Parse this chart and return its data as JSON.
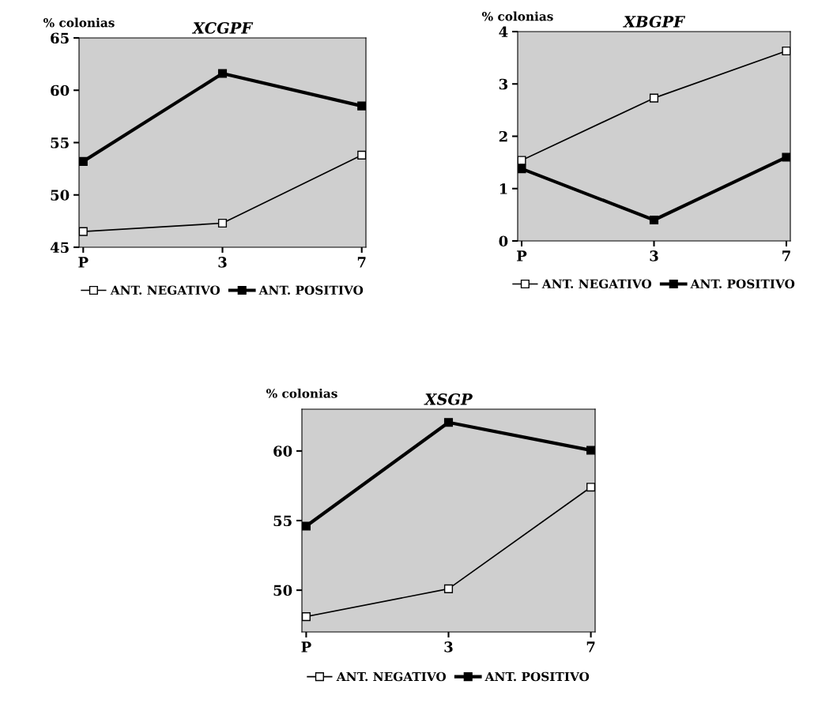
{
  "chart_data": [
    {
      "type": "line",
      "title": "XCGPF",
      "ylabel": "% colonias",
      "categories": [
        "P",
        "3",
        "7"
      ],
      "ylim": [
        45,
        65
      ],
      "yticks": [
        45,
        50,
        55,
        60,
        65
      ],
      "marker": "square",
      "legend": "bottom",
      "grid": false,
      "series": [
        {
          "name": "ANT. NEGATIVO",
          "color": "#000000",
          "values": [
            46.5,
            47.3,
            53.8
          ]
        },
        {
          "name": "ANT. POSITIVO",
          "color": "#000000",
          "values": [
            53.2,
            61.6,
            58.5
          ]
        }
      ]
    },
    {
      "type": "line",
      "title": "XBGPF",
      "ylabel": "% colonias",
      "categories": [
        "P",
        "3",
        "7"
      ],
      "ylim": [
        0,
        4
      ],
      "yticks": [
        0,
        1,
        2,
        3,
        4
      ],
      "marker": "square",
      "legend": "bottom",
      "grid": false,
      "series": [
        {
          "name": "ANT. NEGATIVO",
          "color": "#000000",
          "values": [
            1.54,
            2.73,
            3.63
          ]
        },
        {
          "name": "ANT. POSITIVO",
          "color": "#000000",
          "values": [
            1.38,
            0.4,
            1.6
          ]
        }
      ]
    },
    {
      "type": "line",
      "title": "XSGP",
      "ylabel": "% colonias",
      "categories": [
        "P",
        "3",
        "7"
      ],
      "ylim": [
        47,
        63
      ],
      "yticks": [
        50,
        55,
        60
      ],
      "marker": "square",
      "legend": "bottom",
      "grid": false,
      "series": [
        {
          "name": "ANT. NEGATIVO",
          "color": "#000000",
          "values": [
            48.1,
            50.1,
            57.4
          ]
        },
        {
          "name": "ANT. POSITIVO",
          "color": "#000000",
          "values": [
            54.6,
            62.05,
            60.05
          ]
        }
      ]
    }
  ]
}
